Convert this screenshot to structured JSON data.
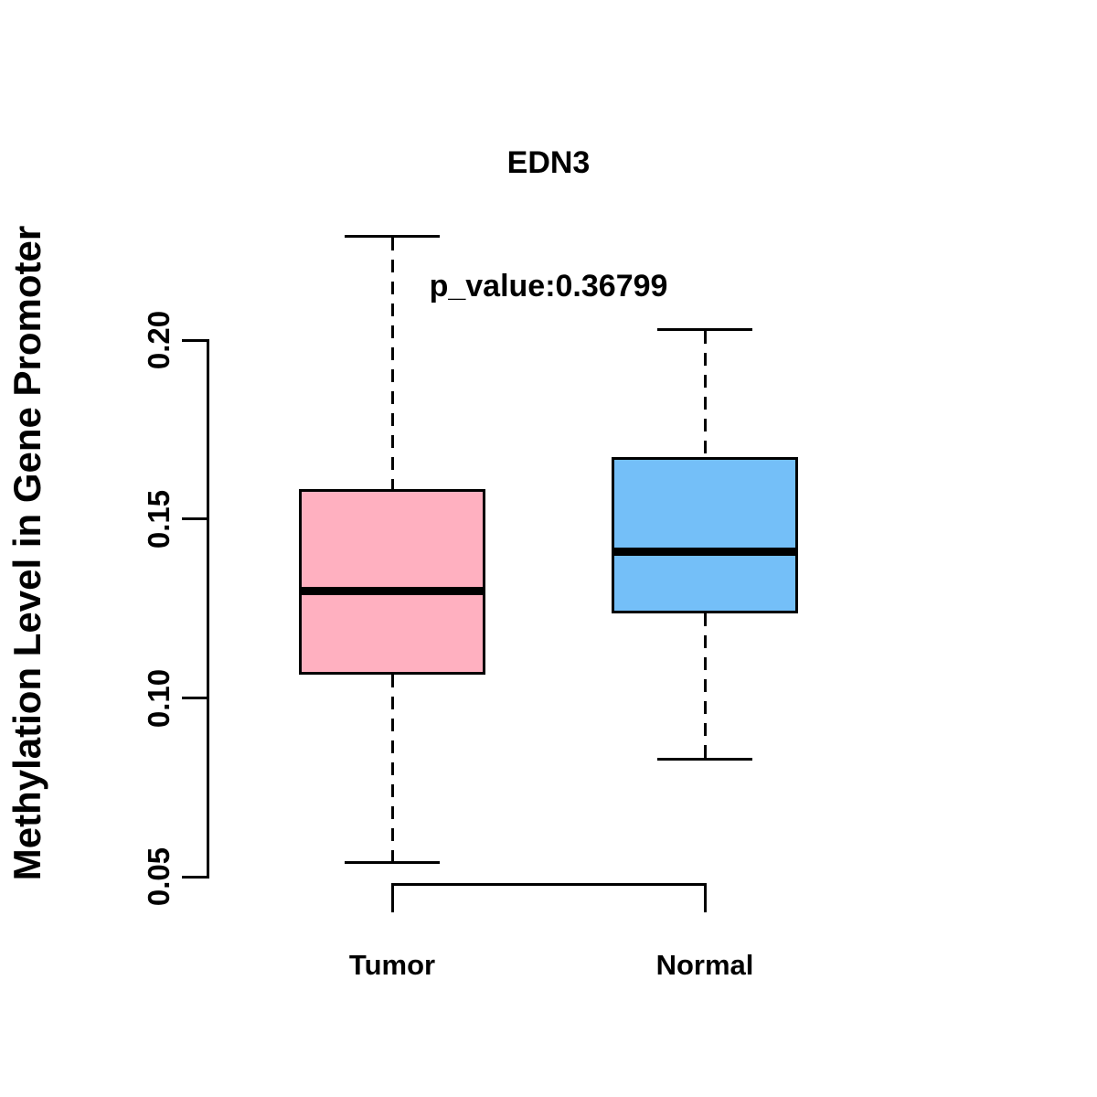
{
  "chart_data": {
    "type": "boxplot",
    "title": "EDN3",
    "subtitle": "p_value:0.36799",
    "ylabel": "Methylation Level in Gene Promoter",
    "xlabel": "",
    "ylim": [
      0.045,
      0.235
    ],
    "grid": false,
    "border_color": "#000000",
    "y_ticks": [
      {
        "value": 0.05,
        "label": "0.05"
      },
      {
        "value": 0.1,
        "label": "0.10"
      },
      {
        "value": 0.15,
        "label": "0.15"
      },
      {
        "value": 0.2,
        "label": "0.20"
      }
    ],
    "groups": [
      {
        "label": "Tumor",
        "fill_color": "#FFB0C0",
        "stats": {
          "whisker_low": 0.054,
          "q1": 0.107,
          "median": 0.13,
          "q3": 0.158,
          "whisker_high": 0.229
        }
      },
      {
        "label": "Normal",
        "fill_color": "#74BFF8",
        "stats": {
          "whisker_low": 0.083,
          "q1": 0.124,
          "median": 0.141,
          "q3": 0.167,
          "whisker_high": 0.203
        }
      }
    ]
  }
}
